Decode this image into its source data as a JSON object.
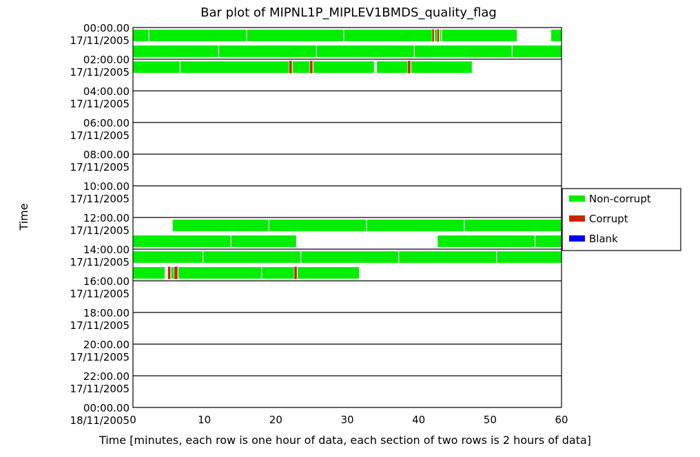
{
  "chart_data": {
    "type": "bar",
    "title": "Bar plot of MIPNL1P_MIPLEV1BMDS_quality_flag",
    "xlabel": "Time [minutes, each row is one hour of data, each section of two rows is 2 hours of data]",
    "ylabel": "Time",
    "xlim": [
      0,
      60
    ],
    "xticks": [
      "0",
      "10",
      "20",
      "30",
      "40",
      "50",
      "60"
    ],
    "y_tick_labels": [
      {
        "time": "00:00.00",
        "date": "17/11/2005"
      },
      {
        "time": "02:00.00",
        "date": "17/11/2005"
      },
      {
        "time": "04:00.00",
        "date": "17/11/2005"
      },
      {
        "time": "06:00.00",
        "date": "17/11/2005"
      },
      {
        "time": "08:00.00",
        "date": "17/11/2005"
      },
      {
        "time": "10:00.00",
        "date": "17/11/2005"
      },
      {
        "time": "12:00.00",
        "date": "17/11/2005"
      },
      {
        "time": "14:00.00",
        "date": "17/11/2005"
      },
      {
        "time": "16:00.00",
        "date": "17/11/2005"
      },
      {
        "time": "18:00.00",
        "date": "17/11/2005"
      },
      {
        "time": "20:00.00",
        "date": "17/11/2005"
      },
      {
        "time": "22:00.00",
        "date": "17/11/2005"
      },
      {
        "time": "00:00.00",
        "date": "18/11/2005"
      }
    ],
    "legend": {
      "placement": "right",
      "entries": [
        {
          "label": "Non-corrupt",
          "color": "#00ee00"
        },
        {
          "label": "Corrupt",
          "color": "#cc2200"
        },
        {
          "label": "Blank",
          "color": "#0000ee"
        }
      ]
    },
    "grid": false,
    "rows": [
      {
        "hour": 0,
        "segments": [
          {
            "start": 0.0,
            "end": 2.2,
            "status": "Non-corrupt"
          },
          {
            "start": 2.2,
            "end": 15.9,
            "status": "Non-corrupt"
          },
          {
            "start": 15.9,
            "end": 29.5,
            "status": "Non-corrupt"
          },
          {
            "start": 29.5,
            "end": 41.9,
            "status": "Non-corrupt"
          },
          {
            "start": 41.9,
            "end": 42.2,
            "status": "Corrupt"
          },
          {
            "start": 42.2,
            "end": 42.6,
            "status": "Non-corrupt"
          },
          {
            "start": 42.6,
            "end": 42.9,
            "status": "Corrupt"
          },
          {
            "start": 42.9,
            "end": 43.2,
            "status": "Non-corrupt"
          },
          {
            "start": 43.2,
            "end": 53.8,
            "status": "Non-corrupt"
          },
          {
            "start": 58.5,
            "end": 60.0,
            "status": "Non-corrupt"
          }
        ]
      },
      {
        "hour": 1,
        "segments": [
          {
            "start": 0.0,
            "end": 12.0,
            "status": "Non-corrupt"
          },
          {
            "start": 12.0,
            "end": 25.7,
            "status": "Non-corrupt"
          },
          {
            "start": 25.7,
            "end": 39.4,
            "status": "Non-corrupt"
          },
          {
            "start": 39.4,
            "end": 53.1,
            "status": "Non-corrupt"
          },
          {
            "start": 53.1,
            "end": 60.0,
            "status": "Non-corrupt"
          }
        ]
      },
      {
        "hour": 2,
        "segments": [
          {
            "start": 0.0,
            "end": 6.6,
            "status": "Non-corrupt"
          },
          {
            "start": 6.6,
            "end": 21.9,
            "status": "Non-corrupt"
          },
          {
            "start": 21.9,
            "end": 22.3,
            "status": "Corrupt"
          },
          {
            "start": 22.3,
            "end": 24.8,
            "status": "Non-corrupt"
          },
          {
            "start": 24.8,
            "end": 25.2,
            "status": "Corrupt"
          },
          {
            "start": 25.2,
            "end": 33.8,
            "status": "Non-corrupt"
          },
          {
            "start": 34.1,
            "end": 38.5,
            "status": "Non-corrupt"
          },
          {
            "start": 38.5,
            "end": 38.9,
            "status": "Corrupt"
          },
          {
            "start": 38.9,
            "end": 47.5,
            "status": "Non-corrupt"
          }
        ]
      },
      {
        "hour": 12,
        "segments": [
          {
            "start": 5.5,
            "end": 19.0,
            "status": "Non-corrupt"
          },
          {
            "start": 19.0,
            "end": 32.7,
            "status": "Non-corrupt"
          },
          {
            "start": 32.7,
            "end": 46.4,
            "status": "Non-corrupt"
          },
          {
            "start": 46.4,
            "end": 60.0,
            "status": "Non-corrupt"
          }
        ]
      },
      {
        "hour": 13,
        "segments": [
          {
            "start": 0.0,
            "end": 13.7,
            "status": "Non-corrupt"
          },
          {
            "start": 13.7,
            "end": 22.9,
            "status": "Non-corrupt"
          },
          {
            "start": 42.6,
            "end": 56.3,
            "status": "Non-corrupt"
          },
          {
            "start": 56.3,
            "end": 60.0,
            "status": "Non-corrupt"
          }
        ]
      },
      {
        "hour": 14,
        "segments": [
          {
            "start": 0.0,
            "end": 9.8,
            "status": "Non-corrupt"
          },
          {
            "start": 9.8,
            "end": 23.5,
            "status": "Non-corrupt"
          },
          {
            "start": 23.5,
            "end": 37.2,
            "status": "Non-corrupt"
          },
          {
            "start": 37.2,
            "end": 50.9,
            "status": "Non-corrupt"
          },
          {
            "start": 50.9,
            "end": 60.0,
            "status": "Non-corrupt"
          }
        ]
      },
      {
        "hour": 15,
        "segments": [
          {
            "start": 0.0,
            "end": 4.5,
            "status": "Non-corrupt"
          },
          {
            "start": 4.9,
            "end": 5.3,
            "status": "Corrupt"
          },
          {
            "start": 5.3,
            "end": 5.8,
            "status": "Non-corrupt"
          },
          {
            "start": 5.8,
            "end": 6.3,
            "status": "Corrupt"
          },
          {
            "start": 6.3,
            "end": 18.0,
            "status": "Non-corrupt"
          },
          {
            "start": 18.0,
            "end": 22.6,
            "status": "Non-corrupt"
          },
          {
            "start": 22.6,
            "end": 23.0,
            "status": "Corrupt"
          },
          {
            "start": 23.0,
            "end": 31.7,
            "status": "Non-corrupt"
          }
        ]
      }
    ]
  }
}
